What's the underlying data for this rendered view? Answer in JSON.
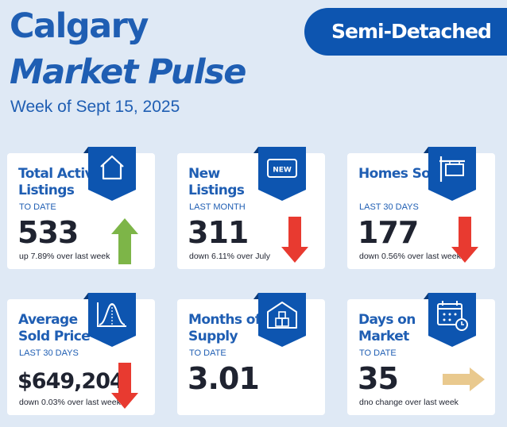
{
  "header": {
    "title_line1": "Calgary",
    "title_line2": "Market Pulse",
    "subtitle": "Week of Sept 15, 2025",
    "badge": "Semi-Detached"
  },
  "colors": {
    "brand": "#1f5eb3",
    "badge": "#0d55b0",
    "up": "#7db548",
    "down": "#e83a30",
    "flat": "#e9c98e"
  },
  "cards": [
    {
      "title": "Total Active Listings",
      "period": "TO DATE",
      "value": "533",
      "change": "up 7.89% over last week",
      "icon": "house-icon",
      "trend": "up"
    },
    {
      "title": "New Listings",
      "period": "LAST MONTH",
      "value": "311",
      "change": "down 6.11% over July",
      "icon": "new-tag-icon",
      "icon_text": "NEW",
      "trend": "down"
    },
    {
      "title": "Homes Sold",
      "period": "LAST 30 DAYS",
      "value": "177",
      "change": "down 0.56% over last week",
      "icon": "sold-sign-icon",
      "trend": "down"
    },
    {
      "title": "Average Sold Price",
      "period": "LAST 30 DAYS",
      "value": "$649,204",
      "change": "down 0.03% over last week",
      "icon": "bell-curve-icon",
      "trend": "down"
    },
    {
      "title": "Months of Supply",
      "period": "TO DATE",
      "value": "3.01",
      "change": "",
      "icon": "warehouse-boxes-icon",
      "trend": "none"
    },
    {
      "title": "Days on Market",
      "period": "TO DATE",
      "value": "35",
      "change": "dno change over last week",
      "icon": "calendar-clock-icon",
      "trend": "flat"
    }
  ]
}
